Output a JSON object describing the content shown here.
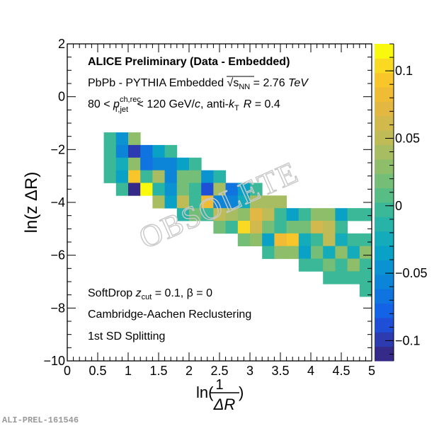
{
  "chart_data": {
    "type": "heatmap",
    "title": "",
    "xlabel": "ln(1/ΔR)",
    "xlabel_parts": {
      "prefix": "ln(",
      "numerator": "1",
      "denominator": "ΔR",
      "suffix": ")"
    },
    "ylabel": "ln(z ΔR)",
    "xlim": [
      0,
      5
    ],
    "ylim": [
      -10,
      2
    ],
    "zlim": [
      -0.115,
      0.12
    ],
    "x_ticks": [
      0,
      0.5,
      1,
      1.5,
      2,
      2.5,
      3,
      3.5,
      4,
      4.5,
      5
    ],
    "x_tick_labels": [
      "0",
      "0.5",
      "1",
      "1.5",
      "2",
      "2.5",
      "3",
      "3.5",
      "4",
      "4.5",
      "5"
    ],
    "y_ticks": [
      2,
      0,
      -2,
      -4,
      -6,
      -8,
      -10
    ],
    "y_tick_labels": [
      "2",
      "0",
      "−2",
      "−4",
      "−6",
      "−8",
      "−10"
    ],
    "z_ticks": [
      0.1,
      0.05,
      0,
      -0.05,
      -0.1
    ],
    "z_tick_labels": [
      "0.1",
      "0.05",
      "0",
      "−0.05",
      "−0.1"
    ],
    "palette": [
      "#352a87",
      "#2c3bb0",
      "#1f4fd6",
      "#1463e6",
      "#0f74e0",
      "#0c84d8",
      "#0a93d0",
      "#0aa1c6",
      "#14abbb",
      "#28b3a9",
      "#3ab897",
      "#58bc85",
      "#75be77",
      "#8fbe6b",
      "#a8bd61",
      "#bfbb57",
      "#d2b94d",
      "#e2b842",
      "#f0bb35",
      "#f8c52b",
      "#fad923",
      "#f9f90e"
    ],
    "x_bin_start": 0.6,
    "x_bin_width": 0.2,
    "y_bin_top": -1.35,
    "y_bin_height": 0.478,
    "rows": [
      {
        "start_col": 0,
        "values": [
          -0.005,
          -0.045,
          0.03
        ]
      },
      {
        "start_col": 0,
        "values": [
          -0.005,
          -0.06,
          -0.095,
          -0.07,
          -0.035,
          -0.005
        ]
      },
      {
        "start_col": 0,
        "values": [
          -0.005,
          -0.02,
          0.03,
          -0.065,
          -0.06,
          -0.06,
          -0.035,
          -0.005
        ]
      },
      {
        "start_col": 0,
        "values": [
          -0.005,
          -0.04,
          0.09,
          -0.005,
          0.045,
          -0.06,
          0.015,
          0.015,
          -0.045,
          -0.01
        ]
      },
      {
        "start_col": 1,
        "values": [
          -0.005,
          -0.11,
          0.12,
          -0.01,
          -0.045,
          0.02,
          -0.005,
          -0.085,
          0.035,
          -0.07,
          -0.035,
          -0.005
        ]
      },
      {
        "start_col": 4,
        "values": [
          0.035,
          -0.035,
          0.05,
          -0.005,
          0.085,
          -0.06,
          -0.06,
          -0.025,
          0.035,
          0.035,
          0.035
        ]
      },
      {
        "start_col": 6,
        "values": [
          -0.01,
          0.015,
          -0.005,
          0.055,
          0.045,
          0.03,
          0.07,
          0.05,
          -0.005,
          -0.035,
          -0.005,
          0.03,
          0.03,
          -0.035,
          -0.005,
          -0.005
        ]
      },
      {
        "start_col": 9,
        "values": [
          0.015,
          -0.005,
          0.1,
          0.065,
          0.02,
          -0.005,
          0.015,
          0.015,
          0.065,
          0.05,
          -0.005
        ]
      },
      {
        "start_col": 11,
        "values": [
          0.015,
          0.03,
          -0.035,
          0.08,
          0.09,
          -0.02,
          -0.005,
          0.05,
          -0.02,
          -0.005,
          -0.005
        ]
      },
      {
        "start_col": 13,
        "values": [
          -0.005,
          0.03,
          0.03,
          -0.035,
          0.015,
          -0.02,
          0.03,
          -0.025,
          0.03
        ]
      },
      {
        "start_col": 16,
        "values": [
          -0.005,
          -0.005,
          0.015,
          -0.005,
          0.03,
          -0.005
        ]
      },
      {
        "start_col": 18,
        "values": [
          -0.005,
          -0.005,
          -0.005,
          -0.005
        ]
      },
      {
        "start_col": 21,
        "values": [
          -0.005
        ]
      }
    ],
    "annotations": {
      "header": "ALICE Preliminary (Data - Embedded)",
      "line2_prefix": "PbPb - PYTHIA Embedded ",
      "line2_sqrt_var": "s",
      "line2_sqrt_sub": "NN",
      "line2_value": " = 2.76 ",
      "line2_unit": "TeV",
      "line3_lo": "80 < ",
      "line3_p": "p",
      "line3_sup": "ch,rec",
      "line3_sub": "T,jet",
      "line3_mid": " < 120 GeV/",
      "line3_c": "c",
      "line3_anti": ", anti-",
      "line3_k": "k",
      "line3_ksub": "T",
      "line3_R": "R",
      "line3_end": " = 0.4",
      "softdrop_prefix": "SoftDrop ",
      "softdrop_z": "z",
      "softdrop_sub": "cut",
      "softdrop_rest": " = 0.1, β = 0",
      "recluster": "Cambridge-Aachen Reclustering",
      "splitting": "1st SD Splitting",
      "watermark_overlay": "OBSOLETE"
    },
    "grid": false,
    "legend": "none",
    "colorbar": "right"
  },
  "figure_id": "ALI-PREL-161546"
}
